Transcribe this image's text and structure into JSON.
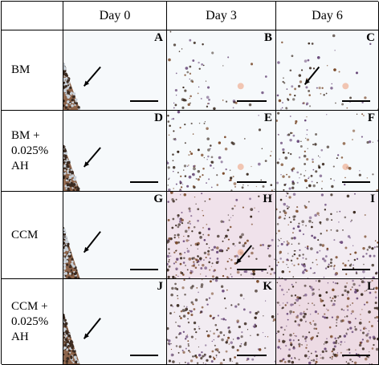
{
  "column_headers": [
    "",
    "Day 0",
    "Day 3",
    "Day 6"
  ],
  "rows": [
    {
      "label": "BM",
      "panels": [
        {
          "letter": "A",
          "day_index": 0,
          "texture": "edge-only",
          "arrow": true
        },
        {
          "letter": "B",
          "day_index": 1,
          "texture": "sparse",
          "arrow": false
        },
        {
          "letter": "C",
          "day_index": 2,
          "texture": "sparse",
          "arrow": true
        }
      ]
    },
    {
      "label": "BM +\n0.025%\nAH",
      "panels": [
        {
          "letter": "D",
          "day_index": 0,
          "texture": "edge-only",
          "arrow": true
        },
        {
          "letter": "E",
          "day_index": 1,
          "texture": "medium",
          "arrow": false
        },
        {
          "letter": "F",
          "day_index": 2,
          "texture": "medium",
          "arrow": false
        }
      ]
    },
    {
      "label": "CCM",
      "panels": [
        {
          "letter": "G",
          "day_index": 0,
          "texture": "edge-only",
          "arrow": true
        },
        {
          "letter": "H",
          "day_index": 1,
          "texture": "dense-pink",
          "arrow": true
        },
        {
          "letter": "I",
          "day_index": 2,
          "texture": "dense",
          "arrow": false
        }
      ]
    },
    {
      "label": "CCM +\n0.025%\nAH",
      "panels": [
        {
          "letter": "J",
          "day_index": 0,
          "texture": "edge-only",
          "arrow": true
        },
        {
          "letter": "K",
          "day_index": 1,
          "texture": "dense",
          "arrow": false
        },
        {
          "letter": "L",
          "day_index": 2,
          "texture": "full-pink",
          "arrow": false
        }
      ]
    }
  ],
  "colors": {
    "background": "#f6f9fb",
    "cell_dark": "#3a2a20",
    "cell_brown": "#7a4a2a",
    "cell_purple": "#6a4a7a",
    "pink_tint": "#e8c6d6",
    "artifact": "#f0b8a0",
    "grid_lines": "#000000"
  }
}
